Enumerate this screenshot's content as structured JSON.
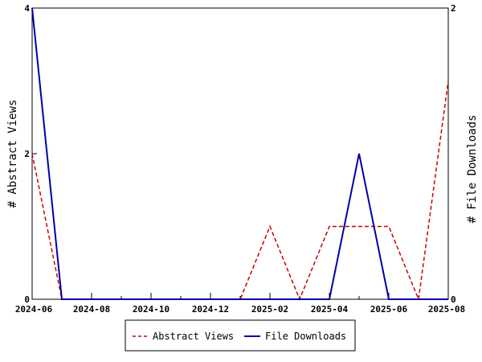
{
  "chart_data": {
    "type": "line",
    "x": [
      "2024-06",
      "2024-07",
      "2024-08",
      "2024-09",
      "2024-10",
      "2024-11",
      "2024-12",
      "2025-01",
      "2025-02",
      "2025-03",
      "2025-04",
      "2025-05",
      "2025-06",
      "2025-07",
      "2025-08"
    ],
    "x_tick_labels": [
      "2024-06",
      "2024-08",
      "2024-10",
      "2024-12",
      "2025-02",
      "2025-04",
      "2025-06",
      "2025-08"
    ],
    "series": [
      {
        "name": "Abstract Views",
        "axis": "left",
        "color": "#cc0000",
        "style": "dashed",
        "values": [
          2,
          0,
          0,
          0,
          0,
          0,
          0,
          0,
          1,
          0,
          1,
          1,
          1,
          0,
          3
        ]
      },
      {
        "name": "File Downloads",
        "axis": "right",
        "color": "#0000aa",
        "style": "solid",
        "values": [
          2,
          0,
          0,
          0,
          0,
          0,
          0,
          0,
          0,
          0,
          0,
          1,
          0,
          0,
          0
        ]
      }
    ],
    "ylabel": "# Abstract Views",
    "y2label": "# File Downloads",
    "ylim": [
      0,
      4
    ],
    "y2lim": [
      0,
      2
    ],
    "y_ticks": [
      "0",
      "2",
      "4"
    ],
    "y2_ticks": [
      "0",
      "2"
    ],
    "grid": false,
    "legend_position": "bottom-center"
  }
}
